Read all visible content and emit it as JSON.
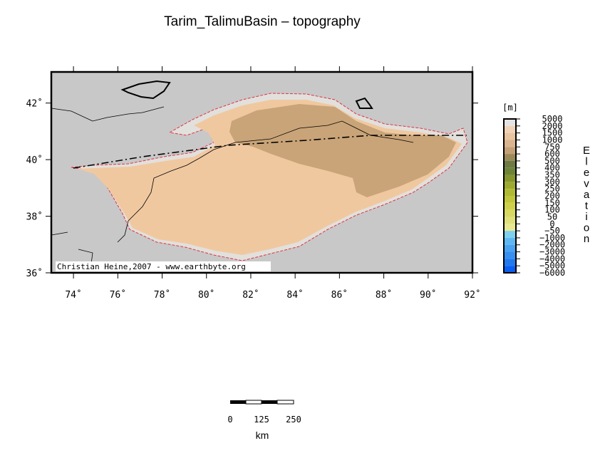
{
  "title": "Tarim_TalimuBasin – topography",
  "x_ticks": [
    {
      "value": 74,
      "label": "74˚"
    },
    {
      "value": 76,
      "label": "76˚"
    },
    {
      "value": 78,
      "label": "78˚"
    },
    {
      "value": 80,
      "label": "80˚"
    },
    {
      "value": 82,
      "label": "82˚"
    },
    {
      "value": 84,
      "label": "84˚"
    },
    {
      "value": 86,
      "label": "86˚"
    },
    {
      "value": 88,
      "label": "88˚"
    },
    {
      "value": 90,
      "label": "90˚"
    },
    {
      "value": 92,
      "label": "92˚"
    }
  ],
  "y_ticks": [
    {
      "value": 36,
      "label": "36˚"
    },
    {
      "value": 38,
      "label": "38˚"
    },
    {
      "value": 40,
      "label": "40˚"
    },
    {
      "value": 42,
      "label": "42˚"
    }
  ],
  "credit": "Christian Heine,2007 - www.earthbyte.org",
  "colorbar": {
    "unit": "[m]",
    "title": "Elevation",
    "labels": [
      "5000",
      "2000",
      "1500",
      "1000",
      "750",
      "600",
      "500",
      "400",
      "350",
      "300",
      "250",
      "200",
      "150",
      "100",
      "50",
      "0",
      "−50",
      "−1000",
      "−2000",
      "−3000",
      "−4000",
      "−5000",
      "−6000"
    ],
    "colors": [
      "#e4e4e4",
      "#f0d2b8",
      "#e8c4a0",
      "#d9b48e",
      "#c4a077",
      "#9a8a5a",
      "#6e7a44",
      "#6d8438",
      "#87952f",
      "#9eaa2f",
      "#b0b934",
      "#c1c53c",
      "#cfd04a",
      "#d8d862",
      "#e0e07a",
      "#e8e890",
      "#7fd0f0",
      "#5fb8f0",
      "#4aa2f0",
      "#3790f0",
      "#227af0",
      "#0a5ef0"
    ]
  },
  "scale": {
    "labels": [
      "0",
      "125",
      "250"
    ],
    "unit": "km"
  }
}
